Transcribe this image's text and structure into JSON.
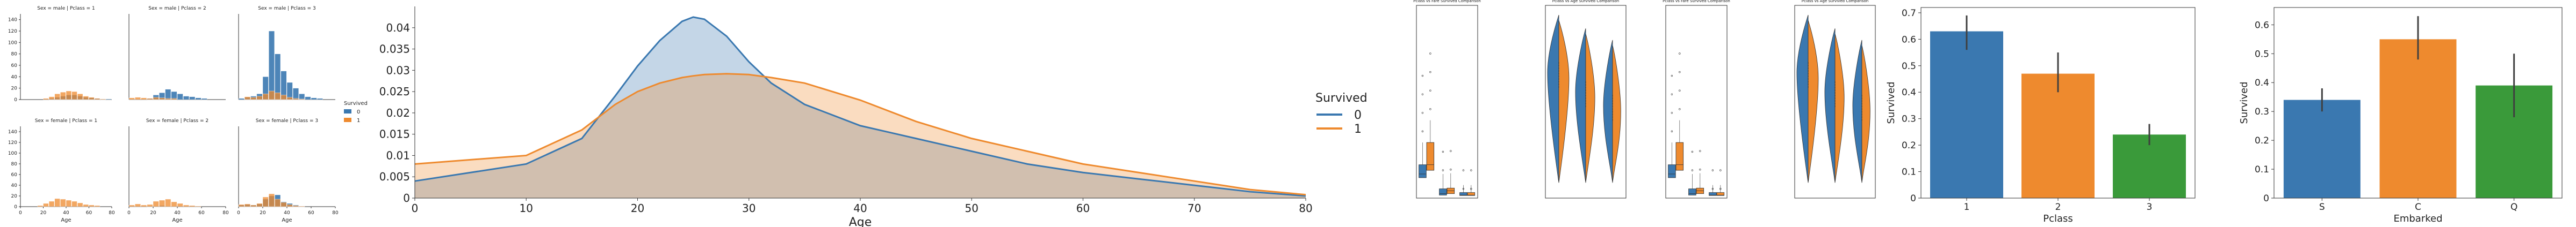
{
  "colors": {
    "survived_0": "#3a78b0",
    "survived_1": "#ee8a2e",
    "bar_green": "#3a9a3a"
  },
  "chart_data": [
    {
      "id": "facet-hist",
      "type": "bar",
      "panels": [
        {
          "title": "Sex = male | Pclass = 1",
          "bins": [
            15,
            20,
            25,
            30,
            35,
            40,
            45,
            50,
            55,
            60,
            65,
            70,
            75,
            80
          ],
          "counts0": [
            0,
            0,
            2,
            4,
            6,
            8,
            8,
            6,
            4,
            3,
            2,
            1,
            1,
            0
          ],
          "counts1": [
            0,
            2,
            5,
            10,
            13,
            15,
            14,
            10,
            6,
            4,
            2,
            1,
            0,
            0
          ]
        },
        {
          "title": "Sex = male | Pclass = 2",
          "bins": [
            0,
            5,
            10,
            15,
            20,
            25,
            30,
            35,
            40,
            45,
            50,
            55,
            60,
            65,
            70
          ],
          "counts0": [
            0,
            0,
            0,
            2,
            8,
            12,
            18,
            14,
            10,
            6,
            5,
            3,
            2,
            0,
            0
          ],
          "counts1": [
            3,
            4,
            3,
            2,
            4,
            3,
            2,
            2,
            0,
            0,
            0,
            0,
            0,
            0,
            0
          ]
        },
        {
          "title": "Sex = male | Pclass = 3",
          "bins": [
            0,
            5,
            10,
            15,
            20,
            25,
            30,
            35,
            40,
            45,
            50,
            55,
            60,
            65,
            70
          ],
          "counts0": [
            2,
            4,
            6,
            10,
            40,
            120,
            80,
            50,
            30,
            20,
            10,
            5,
            3,
            2,
            0
          ],
          "counts1": [
            0,
            5,
            4,
            6,
            10,
            15,
            12,
            8,
            4,
            2,
            1,
            0,
            0,
            0,
            0
          ]
        },
        {
          "title": "Sex = female | Pclass = 1",
          "bins": [
            15,
            20,
            25,
            30,
            35,
            40,
            45,
            50,
            55,
            60,
            65
          ],
          "counts0": [
            0,
            1,
            0,
            0,
            1,
            0,
            0,
            0,
            0,
            0,
            0
          ],
          "counts1": [
            2,
            6,
            10,
            15,
            14,
            12,
            10,
            7,
            4,
            3,
            2
          ]
        },
        {
          "title": "Sex = female | Pclass = 2",
          "bins": [
            0,
            5,
            10,
            15,
            20,
            25,
            30,
            35,
            40,
            45,
            50,
            55
          ],
          "counts0": [
            0,
            0,
            0,
            1,
            1,
            2,
            1,
            1,
            0,
            0,
            0,
            0
          ],
          "counts1": [
            3,
            5,
            3,
            4,
            10,
            12,
            14,
            9,
            6,
            3,
            2,
            1
          ]
        },
        {
          "title": "Sex = female | Pclass = 3",
          "bins": [
            0,
            5,
            10,
            15,
            20,
            25,
            30,
            35,
            40,
            45,
            50
          ],
          "counts0": [
            3,
            4,
            3,
            5,
            14,
            20,
            22,
            9,
            6,
            3,
            1
          ],
          "counts1": [
            4,
            5,
            3,
            6,
            18,
            24,
            14,
            8,
            4,
            2,
            1
          ]
        }
      ],
      "yticks": [
        0,
        20,
        40,
        60,
        80,
        100,
        120,
        140
      ],
      "xticks": [
        0,
        20,
        40,
        60,
        80
      ],
      "xlabel": "Age",
      "legend": {
        "title": "Survived",
        "labels": [
          "0",
          "1"
        ],
        "placement": "right"
      }
    },
    {
      "id": "kde",
      "type": "area",
      "x": [
        0,
        5,
        10,
        15,
        18,
        20,
        22,
        24,
        25,
        26,
        28,
        30,
        32,
        35,
        40,
        45,
        50,
        55,
        60,
        65,
        70,
        75,
        80
      ],
      "series": [
        {
          "name": "0",
          "values": [
            0.004,
            0.006,
            0.008,
            0.014,
            0.024,
            0.031,
            0.037,
            0.0415,
            0.0425,
            0.042,
            0.038,
            0.032,
            0.027,
            0.022,
            0.017,
            0.014,
            0.011,
            0.008,
            0.006,
            0.0045,
            0.003,
            0.0015,
            0.0005
          ]
        },
        {
          "name": "1",
          "values": [
            0.008,
            0.009,
            0.01,
            0.016,
            0.022,
            0.025,
            0.027,
            0.0283,
            0.0287,
            0.029,
            0.0292,
            0.029,
            0.0283,
            0.027,
            0.023,
            0.018,
            0.014,
            0.011,
            0.008,
            0.006,
            0.004,
            0.002,
            0.0008
          ]
        }
      ],
      "xlim": [
        0,
        80
      ],
      "ylim": [
        0,
        0.045
      ],
      "xticks": [
        0,
        10,
        20,
        30,
        40,
        50,
        60,
        70,
        80
      ],
      "yticks": [
        0,
        0.005,
        0.01,
        0.015,
        0.02,
        0.025,
        0.03,
        0.035,
        0.04
      ],
      "ytick_labels": [
        "0",
        "0.005",
        "0.01",
        "0.015",
        "0.02",
        "0.025",
        "0.03",
        "0.035",
        "0.04"
      ],
      "xlabel": "Age",
      "legend": {
        "title": "Survived",
        "labels": [
          "0",
          "1"
        ],
        "placement": "right"
      }
    },
    {
      "id": "box-1",
      "type": "box",
      "title": "Pclass vs Fare Survived Comparison",
      "groups": [
        {
          "q1": [
            55,
            75
          ],
          "med": [
            65,
            90
          ],
          "q3": [
            90,
            150
          ]
        },
        {
          "q1": [
            8,
            12
          ],
          "med": [
            12,
            20
          ],
          "q3": [
            25,
            27
          ]
        },
        {
          "q1": [
            7,
            7
          ],
          "med": [
            8,
            8
          ],
          "q3": [
            15,
            15
          ]
        }
      ]
    },
    {
      "id": "violin-1",
      "type": "violin",
      "title": "Pclass vs Age Survived Comparison"
    },
    {
      "id": "box-2",
      "type": "box",
      "title": "Pclass vs Fare Survived Comparison",
      "groups": [
        {
          "q1": [
            55,
            75
          ],
          "med": [
            65,
            90
          ],
          "q3": [
            90,
            150
          ]
        },
        {
          "q1": [
            8,
            12
          ],
          "med": [
            12,
            20
          ],
          "q3": [
            25,
            27
          ]
        },
        {
          "q1": [
            7,
            7
          ],
          "med": [
            8,
            8
          ],
          "q3": [
            15,
            15
          ]
        }
      ]
    },
    {
      "id": "violin-2",
      "type": "violin",
      "title": "Pclass vs Age Survived Comparison"
    },
    {
      "id": "bar-pclass",
      "type": "bar",
      "categories": [
        "1",
        "2",
        "3"
      ],
      "values": [
        0.63,
        0.47,
        0.24
      ],
      "errors": [
        [
          0.56,
          0.69
        ],
        [
          0.4,
          0.55
        ],
        [
          0.2,
          0.28
        ]
      ],
      "xlabel": "Pclass",
      "ylabel": "Survived",
      "ylim": [
        0,
        0.72
      ],
      "yticks": [
        0,
        0.1,
        0.2,
        0.3,
        0.4,
        0.5,
        0.6,
        0.7
      ]
    },
    {
      "id": "bar-embarked",
      "type": "bar",
      "categories": [
        "S",
        "C",
        "Q"
      ],
      "values": [
        0.34,
        0.55,
        0.39
      ],
      "errors": [
        [
          0.3,
          0.38
        ],
        [
          0.48,
          0.63
        ],
        [
          0.28,
          0.5
        ]
      ],
      "xlabel": "Embarked",
      "ylabel": "Survived",
      "ylim": [
        0,
        0.66
      ],
      "yticks": [
        0,
        0.1,
        0.2,
        0.3,
        0.4,
        0.5,
        0.6
      ]
    }
  ]
}
